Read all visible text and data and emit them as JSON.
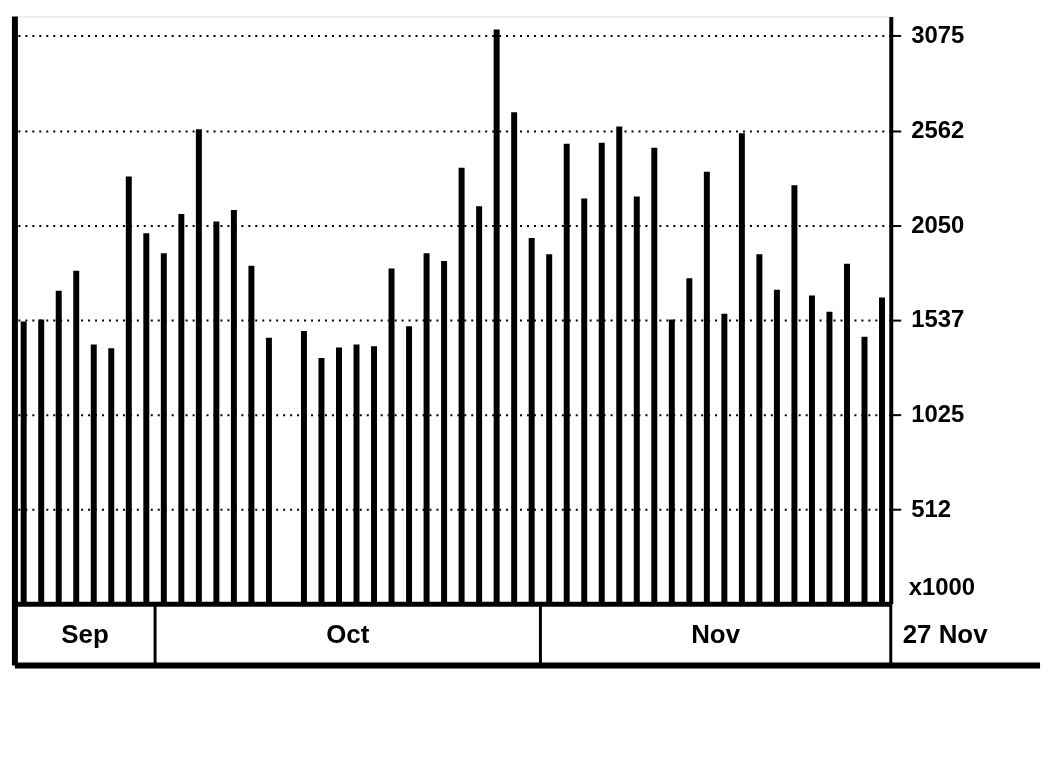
{
  "chart_data": {
    "type": "bar",
    "categories": [
      null,
      null,
      null,
      null,
      null,
      null,
      null,
      null,
      null,
      null,
      null,
      null,
      null,
      null,
      null,
      null,
      null,
      null,
      null,
      null,
      null,
      null,
      null,
      null,
      null,
      null,
      null,
      null,
      null,
      null,
      null,
      null,
      null,
      null,
      null,
      null,
      null,
      null,
      null,
      null,
      null,
      null,
      null,
      null,
      null,
      null,
      null,
      null,
      null,
      null
    ],
    "values": [
      1529,
      1539,
      1695,
      1804,
      1404,
      1383,
      2314,
      2007,
      1898,
      2111,
      2569,
      2070,
      2132,
      1830,
      1440,
      null,
      1477,
      1331,
      1388,
      1404,
      1394,
      1815,
      1503,
      1898,
      1856,
      2361,
      2153,
      3110,
      2662,
      1981,
      1893,
      2491,
      2194,
      2496,
      2584,
      2205,
      2470,
      1539,
      1763,
      2340,
      1570,
      2548,
      1893,
      1700,
      2267,
      1669,
      1581,
      1841,
      1446,
      1659
    ],
    "color": "#000000",
    "ylabel": "x1000",
    "ylim": [
      0,
      3180
    ],
    "yticks": [
      512,
      1025,
      1537,
      2050,
      2562,
      3075
    ],
    "grid": "y",
    "annotations": [
      "Sep",
      "Oct",
      "Nov",
      "27 Nov"
    ]
  }
}
